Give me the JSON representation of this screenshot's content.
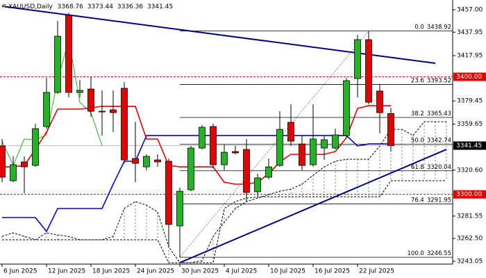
{
  "chart_data": {
    "type": "candlestick",
    "title": "XAUUSD,Daily",
    "categories": [
      "6 Jun 2025",
      null,
      null,
      null,
      "12 Jun 2025",
      null,
      null,
      null,
      "18 Jun 2025",
      null,
      null,
      null,
      "24 Jun 2025",
      null,
      null,
      null,
      "30 Jun 2025",
      null,
      null,
      null,
      "4 Jul 2025",
      null,
      null,
      null,
      "10 Jul 2025",
      null,
      null,
      null,
      "16 Jul 2025",
      null,
      null,
      null,
      "22 Jul 2025",
      null,
      null,
      null,
      null,
      null,
      null,
      null,
      null
    ],
    "candles": [
      {
        "open": 3341.2,
        "high": 3347.1,
        "low": 3310.4,
        "close": 3314.6
      },
      {
        "open": 3311.6,
        "high": 3332.3,
        "low": 3310.4,
        "close": 3325.2
      },
      {
        "open": 3327.6,
        "high": 3332.3,
        "low": 3301.0,
        "close": 3323.4
      },
      {
        "open": 3324.6,
        "high": 3360.1,
        "low": 3323.4,
        "close": 3355.9
      },
      {
        "open": 3357.7,
        "high": 3399.1,
        "low": 3355.9,
        "close": 3386.7
      },
      {
        "open": 3386.7,
        "high": 3447.5,
        "low": 3385.5,
        "close": 3434.5
      },
      {
        "open": 3452.3,
        "high": 3454.6,
        "low": 3382.5,
        "close": 3386.7
      },
      {
        "open": 3386.7,
        "high": 3397.3,
        "low": 3382.5,
        "close": 3388.4
      },
      {
        "open": 3389.6,
        "high": 3400.3,
        "low": 3366.0,
        "close": 3370.7
      },
      {
        "open": 3370.7,
        "high": 3388.4,
        "low": 3350.0,
        "close": 3370.1
      },
      {
        "open": 3371.9,
        "high": 3388.4,
        "low": 3353.0,
        "close": 3369.5
      },
      {
        "open": 3390.2,
        "high": 3395.5,
        "low": 3326.4,
        "close": 3329.3
      },
      {
        "open": 3330.5,
        "high": 3361.8,
        "low": 3310.4,
        "close": 3326.4
      },
      {
        "open": 3323.4,
        "high": 3334.1,
        "low": 3320.5,
        "close": 3332.3
      },
      {
        "open": 3329.3,
        "high": 3334.1,
        "low": 3323.4,
        "close": 3327.6
      },
      {
        "open": 3328.2,
        "high": 3330.5,
        "low": 3255.5,
        "close": 3274.4
      },
      {
        "open": 3273.2,
        "high": 3305.7,
        "low": 3246.55,
        "close": 3302.7
      },
      {
        "open": 3303.9,
        "high": 3341.2,
        "low": 3302.7,
        "close": 3339.4
      },
      {
        "open": 3339.4,
        "high": 3358.9,
        "low": 3338.2,
        "close": 3357.1
      },
      {
        "open": 3357.7,
        "high": 3360.1,
        "low": 3322.2,
        "close": 3325.2
      },
      {
        "open": 3325.2,
        "high": 3342.3,
        "low": 3320.5,
        "close": 3335.8
      },
      {
        "open": 3336.4,
        "high": 3341.2,
        "low": 3334.1,
        "close": 3335.3
      },
      {
        "open": 3338.2,
        "high": 3347.1,
        "low": 3293.9,
        "close": 3301.6
      },
      {
        "open": 3302.2,
        "high": 3317.5,
        "low": 3298.6,
        "close": 3314.0
      },
      {
        "open": 3314.6,
        "high": 3330.5,
        "low": 3312.8,
        "close": 3323.4
      },
      {
        "open": 3324.6,
        "high": 3370.7,
        "low": 3323.4,
        "close": 3355.3
      },
      {
        "open": 3361.3,
        "high": 3376.6,
        "low": 3341.2,
        "close": 3345.3
      },
      {
        "open": 3342.9,
        "high": 3350.0,
        "low": 3320.5,
        "close": 3324.6
      },
      {
        "open": 3325.2,
        "high": 3376.6,
        "low": 3323.4,
        "close": 3347.1
      },
      {
        "open": 3339.4,
        "high": 3350.0,
        "low": 3329.3,
        "close": 3346.5
      },
      {
        "open": 3339.4,
        "high": 3355.9,
        "low": 3338.2,
        "close": 3350.6
      },
      {
        "open": 3350.0,
        "high": 3399.1,
        "low": 3348.3,
        "close": 3396.7
      },
      {
        "open": 3398.5,
        "high": 3435.7,
        "low": 3382.5,
        "close": 3431.6
      },
      {
        "open": 3431.6,
        "high": 3438.92,
        "low": 3376.6,
        "close": 3378.4
      },
      {
        "open": 3387.9,
        "high": 3393.2,
        "low": 3351.8,
        "close": 3369.5
      },
      {
        "open": 3368.76,
        "high": 3373.44,
        "low": 3336.36,
        "close": 3341.45
      }
    ],
    "up_color": "#22b422",
    "down_color": "#e60000",
    "xlim": [
      -0.1875,
      40.5625
    ],
    "ylim": [
      3240.7,
      3465.3
    ],
    "yticks": [
      {
        "value": 3457,
        "label": "3457.00"
      },
      3437.95,
      3417.95,
      3379.45,
      3359.65,
      {
        "value": 3320.6,
        "label": "3320.60"
      },
      3281.55,
      {
        "value": 3262.5,
        "label": "3262.50"
      },
      3243.05
    ],
    "lines": {
      "tenkan": {
        "color": "#e60000",
        "values": [
          3323.4,
          3323.4,
          3324.6,
          3338.2,
          3353.0,
          3372.5,
          3372.5,
          3372.5,
          3373.7,
          3374.8,
          3374.8,
          3374.8,
          3374.8,
          3347.1,
          3347.1,
          3324.6,
          3323.4,
          3323.4,
          3323.4,
          3323.4,
          3310.4,
          3308.7,
          3308.7,
          3310.4,
          3317.5,
          3327.6,
          3334.1,
          3334.1,
          3334.1,
          3334.1,
          3336.4,
          3348.3,
          3373.1,
          3375.4,
          3375.4,
          3375.4
        ]
      },
      "kijun": {
        "color": "#0000e0",
        "values": [
          3280.3,
          3280.3,
          3280.3,
          3280.3,
          3268.5,
          3288.0,
          3288.0,
          3288.0,
          3288.0,
          3288.0,
          3308.7,
          3328.2,
          3328.2,
          3350.0,
          3350.0,
          3350.0,
          3350.0,
          3350.0,
          3350.0,
          3350.0,
          3350.0,
          3350.0,
          3350.0,
          3350.0,
          3350.0,
          3350.0,
          3350.0,
          3350.0,
          3350.0,
          3350.0,
          3350.0,
          3350.0,
          3341.2,
          3342.9,
          3342.9,
          3342.9
        ]
      },
      "chikou": {
        "color": "#22b422",
        "values": [
          3345.3,
          3324.6,
          3347.1,
          3346.5,
          3350.6,
          3396.7,
          3431.6,
          3378.4,
          3369.5,
          3341.45
        ]
      },
      "span_a": {
        "color": "#000000",
        "values": [
          3264.3,
          3267.3,
          3264.3,
          3261.4,
          3267.3,
          3265.5,
          3264.3,
          3261.4,
          3261.4,
          3261.4,
          3264.3,
          3288.0,
          3293.9,
          3290.9,
          3285.0,
          3255.5,
          3241.9,
          3241.9,
          3243.6,
          3264.3,
          3276.2,
          3288.0,
          3293.9,
          3296.8,
          3299.8,
          3302.7,
          3304.5,
          3308.7,
          3316.3,
          3323.4,
          3328.2,
          3329.9,
          3329.9,
          3329.9,
          3341.2,
          3355.3,
          3355.3,
          3350.0,
          3361.8,
          3361.8,
          3361.8
        ]
      },
      "span_b": {
        "color": "#000000",
        "values": [
          3261.4,
          3261.4,
          3261.4,
          3261.4,
          3261.4,
          3261.4,
          3261.4,
          3261.4,
          3261.4,
          3261.4,
          3261.4,
          3261.4,
          3261.4,
          3261.4,
          3261.4,
          3241.9,
          3241.9,
          3241.9,
          3241.9,
          3241.9,
          3288.0,
          3293.9,
          3296.8,
          3298.0,
          3298.0,
          3298.0,
          3298.0,
          3298.0,
          3298.0,
          3298.0,
          3298.0,
          3298.0,
          3298.0,
          3298.0,
          3298.0,
          3311.6,
          3311.6,
          3311.6,
          3311.6,
          3311.6,
          3311.6
        ]
      }
    },
    "trendlines": [
      {
        "color": "#00008b",
        "x": [
          0,
          39
        ],
        "y": [
          3460.0,
          3411.5
        ]
      },
      {
        "color": "#00008b",
        "x": [
          16,
          40
        ],
        "y": [
          3241.9,
          3338.2
        ]
      }
    ],
    "fibonacci": {
      "x": [
        16,
        33
      ],
      "levels": [
        {
          "label": "0.0",
          "value": 3438.92
        },
        {
          "label": "23.6",
          "value": 3393.52
        },
        {
          "label": "38.2",
          "value": 3365.43
        },
        {
          "label": "50.0",
          "value": 3342.74
        },
        {
          "label": "61.8",
          "value": 3320.04
        },
        {
          "label": "76.4",
          "value": 3291.95
        },
        {
          "label": "100.0",
          "value": 3246.55
        }
      ]
    },
    "levels": [
      {
        "value": 3400,
        "label": "3400.00"
      },
      {
        "value": 3300,
        "label": "3300.00"
      }
    ],
    "level_color": "#e60000"
  }
}
